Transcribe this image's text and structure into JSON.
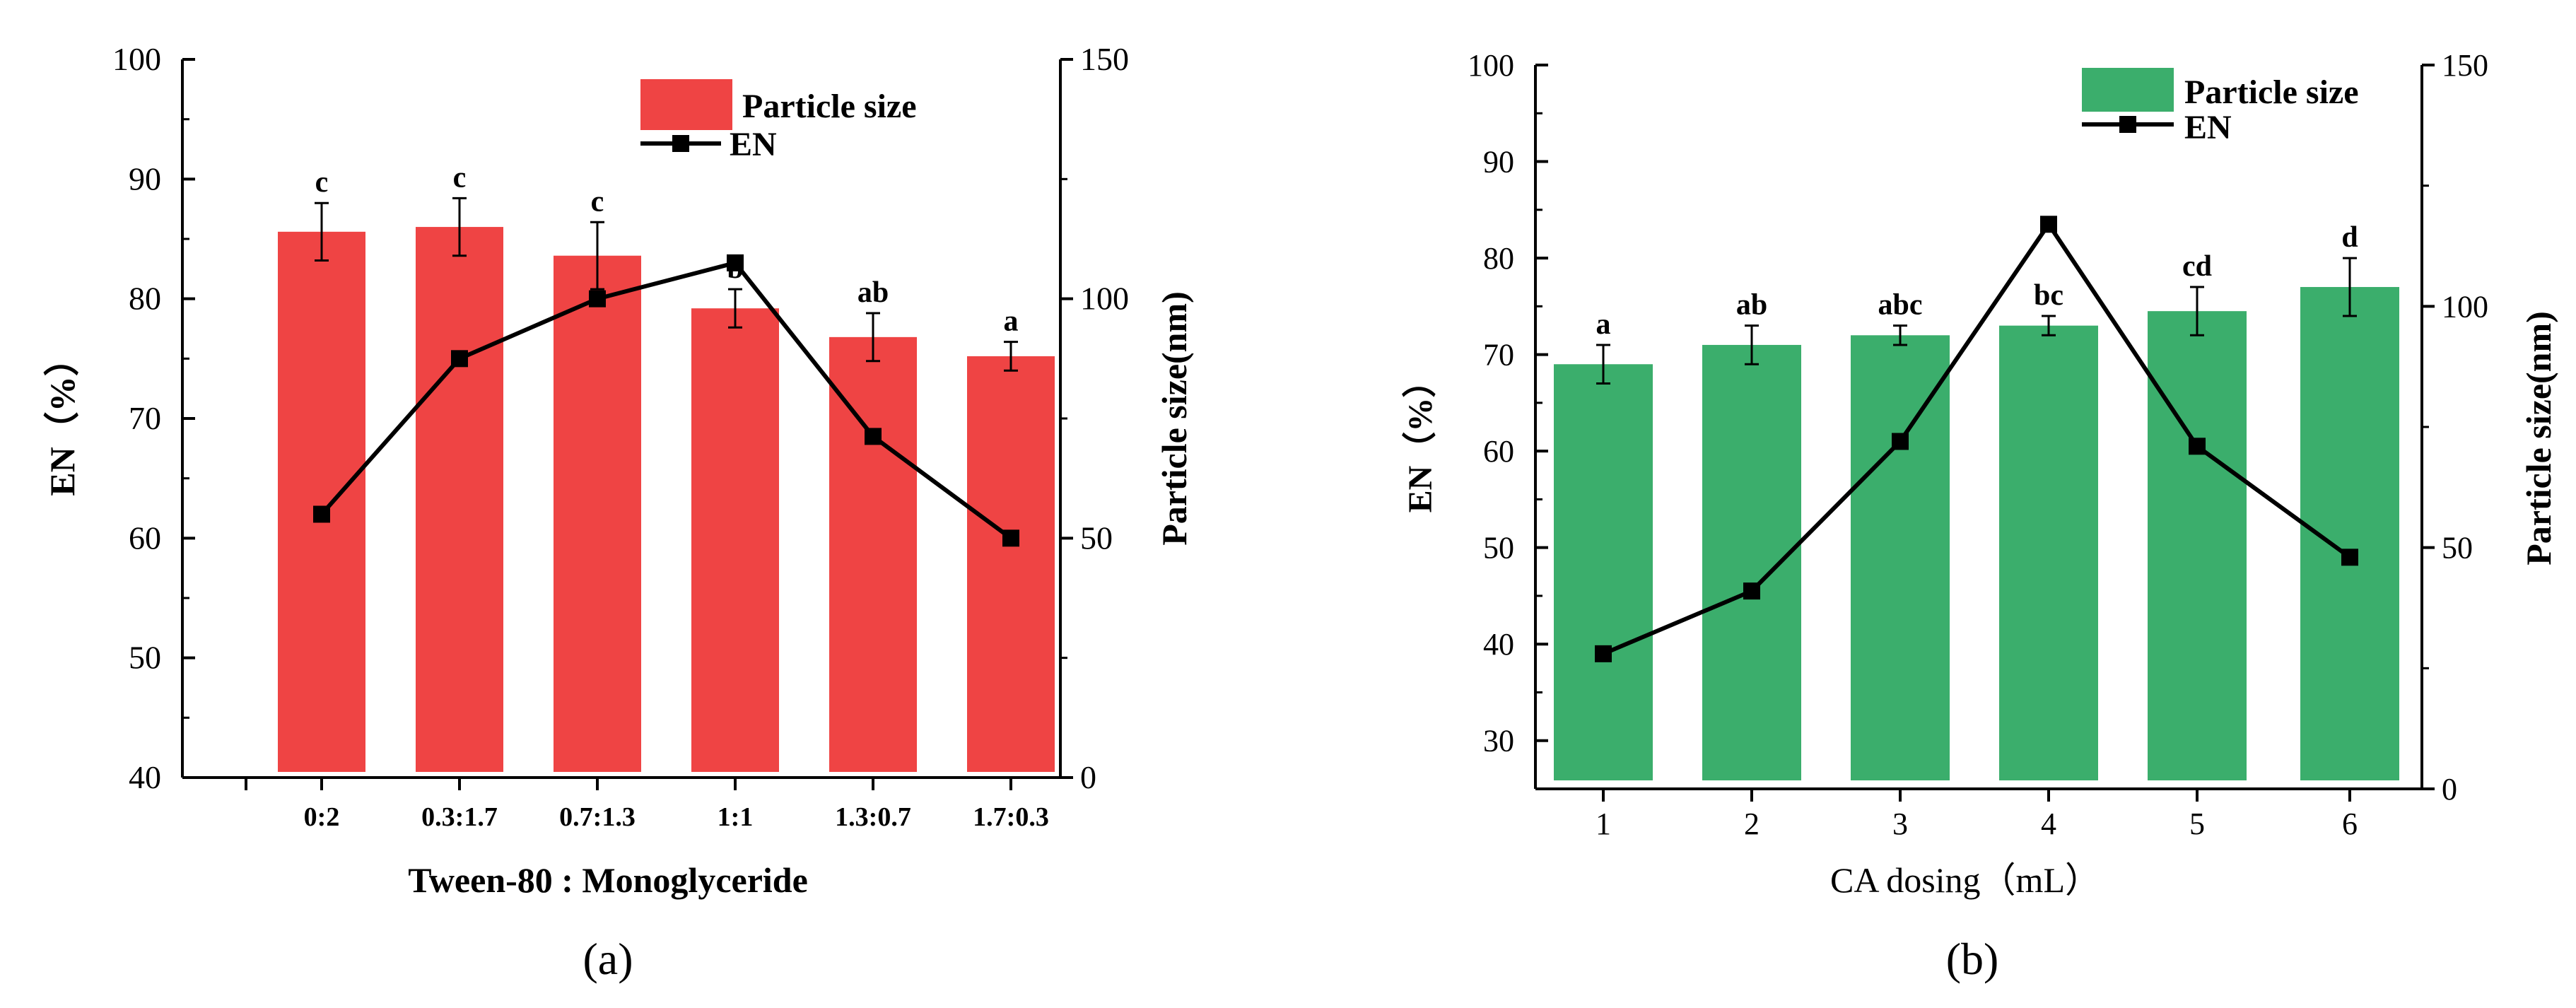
{
  "chart_data": [
    {
      "type": "bar",
      "panel_label": "(a)",
      "xlabel": "Tween-80 : Monoglyceride",
      "categories": [
        "0:2",
        "0.3:1.7",
        "0.7:1.3",
        "1:1",
        "1.3:0.7",
        "1.7:0.3"
      ],
      "bar_color": "#EF4444",
      "left_axis": {
        "label": "EN（%）",
        "range": [
          40,
          100
        ],
        "ticks": [
          40,
          50,
          60,
          70,
          80,
          90,
          100
        ]
      },
      "right_axis": {
        "label": "Particle size(nm)",
        "range": [
          0,
          150
        ],
        "ticks": [
          0,
          50,
          100,
          150
        ]
      },
      "series": [
        {
          "name": "Particle size",
          "kind": "bar",
          "axis": "right",
          "values": [
            114,
            115,
            109,
            98,
            92,
            88
          ],
          "errors": [
            6,
            6,
            7,
            4,
            5,
            3
          ],
          "letters": [
            "c",
            "c",
            "c",
            "b",
            "ab",
            "a"
          ]
        },
        {
          "name": "EN",
          "kind": "line",
          "axis": "left",
          "values": [
            62,
            75,
            80,
            83,
            68.5,
            60
          ]
        }
      ],
      "legend": {
        "position": "top-right",
        "entries": [
          "Particle size",
          "EN"
        ]
      }
    },
    {
      "type": "bar",
      "panel_label": "(b)",
      "xlabel": "CA dosing（mL）",
      "categories": [
        "1",
        "2",
        "3",
        "4",
        "5",
        "6"
      ],
      "bar_color": "#3BAE6C",
      "left_axis": {
        "label": "EN（%）",
        "range": [
          25,
          100
        ],
        "ticks": [
          30,
          40,
          50,
          60,
          70,
          80,
          90,
          100
        ]
      },
      "right_axis": {
        "label": "Particle size(nm)",
        "range": [
          0,
          150
        ],
        "ticks": [
          0,
          50,
          100,
          150
        ]
      },
      "series": [
        {
          "name": "Particle size",
          "kind": "bar",
          "axis": "right",
          "values": [
            88,
            92,
            94,
            96,
            99,
            104
          ],
          "errors": [
            4,
            4,
            2,
            2,
            5,
            6
          ],
          "letters": [
            "a",
            "ab",
            "abc",
            "bc",
            "cd",
            "d"
          ]
        },
        {
          "name": "EN",
          "kind": "line",
          "axis": "left",
          "values": [
            39,
            45.5,
            61,
            83.5,
            60.5,
            49
          ]
        }
      ],
      "legend": {
        "position": "top-right",
        "entries": [
          "Particle size",
          "EN"
        ]
      }
    }
  ]
}
